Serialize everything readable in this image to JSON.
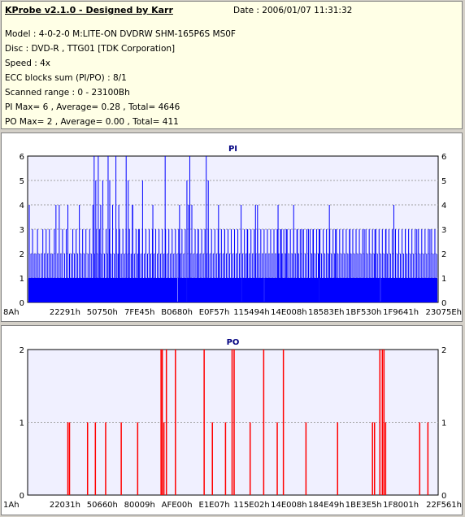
{
  "info": {
    "title": "KProbe v2.1.0 - Designed by Karr",
    "date": "Date : 2006/01/07 11:31:32",
    "lines": [
      "Model : 4-0-2-0 M:LITE-ON DVDRW SHM-165P6S MS0F",
      "Disc : DVD-R , TTG01 [TDK Corporation]",
      "Speed : 4x",
      "ECC blocks sum (PI/PO) : 8/1",
      "Scanned range : 0 - 23100Bh",
      "PI Max= 6 , Average= 0.28 , Total= 4646",
      "PO Max= 2 , Average= 0.00 , Total= 411"
    ]
  },
  "colors": {
    "pi_series": "#0000ff",
    "po_series": "#ff0000",
    "plot_bg": "#f0f0ff",
    "grid": "#a0a0a0",
    "pi_title": "#000080",
    "po_title": "#000080"
  },
  "chart_data": [
    {
      "type": "bar",
      "title": "PI",
      "ylim": [
        0,
        6
      ],
      "yticks": [
        "0",
        "1",
        "2",
        "3",
        "4",
        "5",
        "6"
      ],
      "xticks": [
        "8Ah",
        "22291h",
        "50750h",
        "7FE45h",
        "B0680h",
        "E0F57h",
        "115494h",
        "14E008h",
        "18583Eh",
        "1BF530h",
        "1F9641h",
        "23075Eh"
      ],
      "x_range": [
        0,
        1
      ],
      "grid": true,
      "baseline": 1,
      "baseline_gaps": [
        0.365,
        0.388,
        0.52,
        0.576,
        0.71,
        0.86
      ],
      "spikes": [
        [
          0.004,
          4
        ],
        [
          0.008,
          2
        ],
        [
          0.012,
          3
        ],
        [
          0.016,
          2
        ],
        [
          0.02,
          2
        ],
        [
          0.024,
          3
        ],
        [
          0.028,
          2
        ],
        [
          0.033,
          2
        ],
        [
          0.037,
          3
        ],
        [
          0.041,
          2
        ],
        [
          0.045,
          3
        ],
        [
          0.049,
          2
        ],
        [
          0.053,
          3
        ],
        [
          0.057,
          2
        ],
        [
          0.061,
          2
        ],
        [
          0.065,
          3
        ],
        [
          0.069,
          4
        ],
        [
          0.073,
          2
        ],
        [
          0.077,
          4
        ],
        [
          0.081,
          2
        ],
        [
          0.085,
          3
        ],
        [
          0.09,
          2
        ],
        [
          0.094,
          3
        ],
        [
          0.098,
          4
        ],
        [
          0.102,
          2
        ],
        [
          0.106,
          2
        ],
        [
          0.11,
          3
        ],
        [
          0.114,
          2
        ],
        [
          0.118,
          3
        ],
        [
          0.122,
          2
        ],
        [
          0.126,
          4
        ],
        [
          0.13,
          2
        ],
        [
          0.134,
          3
        ],
        [
          0.138,
          2
        ],
        [
          0.142,
          3
        ],
        [
          0.147,
          2
        ],
        [
          0.151,
          3
        ],
        [
          0.155,
          2
        ],
        [
          0.159,
          4
        ],
        [
          0.163,
          2
        ],
        [
          0.167,
          3
        ],
        [
          0.171,
          2
        ],
        [
          0.175,
          3
        ],
        [
          0.179,
          2
        ],
        [
          0.183,
          5
        ],
        [
          0.187,
          2
        ],
        [
          0.191,
          3
        ],
        [
          0.195,
          2
        ],
        [
          0.199,
          3
        ],
        [
          0.203,
          2
        ],
        [
          0.207,
          4
        ],
        [
          0.211,
          2
        ],
        [
          0.216,
          3
        ],
        [
          0.22,
          2
        ],
        [
          0.224,
          3
        ],
        [
          0.228,
          2
        ],
        [
          0.232,
          3
        ],
        [
          0.236,
          2
        ],
        [
          0.24,
          3
        ],
        [
          0.244,
          2
        ],
        [
          0.248,
          3
        ],
        [
          0.252,
          2
        ],
        [
          0.256,
          4
        ],
        [
          0.26,
          2
        ],
        [
          0.264,
          3
        ],
        [
          0.268,
          2
        ],
        [
          0.272,
          3
        ],
        [
          0.276,
          2
        ],
        [
          0.28,
          3
        ],
        [
          0.284,
          2
        ],
        [
          0.288,
          3
        ],
        [
          0.292,
          2
        ],
        [
          0.296,
          3
        ],
        [
          0.3,
          2
        ],
        [
          0.304,
          3
        ],
        [
          0.308,
          2
        ],
        [
          0.312,
          3
        ],
        [
          0.316,
          2
        ],
        [
          0.32,
          3
        ],
        [
          0.324,
          2
        ],
        [
          0.328,
          3
        ],
        [
          0.332,
          2
        ],
        [
          0.336,
          3
        ],
        [
          0.34,
          2
        ],
        [
          0.344,
          3
        ],
        [
          0.348,
          2
        ],
        [
          0.352,
          3
        ],
        [
          0.356,
          2
        ],
        [
          0.36,
          3
        ],
        [
          0.364,
          2
        ],
        [
          0.368,
          3
        ],
        [
          0.372,
          2
        ],
        [
          0.376,
          3
        ],
        [
          0.38,
          2
        ],
        [
          0.384,
          3
        ],
        [
          0.388,
          2
        ],
        [
          0.392,
          4
        ],
        [
          0.396,
          2
        ],
        [
          0.4,
          3
        ],
        [
          0.404,
          2
        ],
        [
          0.408,
          3
        ],
        [
          0.412,
          2
        ],
        [
          0.416,
          3
        ],
        [
          0.42,
          2
        ],
        [
          0.424,
          3
        ],
        [
          0.428,
          2
        ],
        [
          0.432,
          3
        ],
        [
          0.436,
          2
        ],
        [
          0.44,
          3
        ],
        [
          0.444,
          2
        ],
        [
          0.448,
          3
        ],
        [
          0.452,
          2
        ],
        [
          0.456,
          3
        ],
        [
          0.46,
          2
        ],
        [
          0.464,
          3
        ],
        [
          0.468,
          2
        ],
        [
          0.472,
          3
        ],
        [
          0.476,
          2
        ],
        [
          0.48,
          3
        ],
        [
          0.484,
          2
        ],
        [
          0.488,
          3
        ],
        [
          0.492,
          2
        ],
        [
          0.496,
          3
        ],
        [
          0.5,
          2
        ],
        [
          0.504,
          3
        ],
        [
          0.508,
          2
        ],
        [
          0.512,
          3
        ],
        [
          0.516,
          2
        ],
        [
          0.52,
          3
        ],
        [
          0.524,
          2
        ],
        [
          0.528,
          3
        ],
        [
          0.532,
          2
        ],
        [
          0.536,
          3
        ],
        [
          0.54,
          2
        ],
        [
          0.544,
          3
        ],
        [
          0.548,
          2
        ],
        [
          0.552,
          3
        ],
        [
          0.556,
          2
        ],
        [
          0.56,
          3
        ],
        [
          0.564,
          2
        ],
        [
          0.568,
          3
        ],
        [
          0.572,
          2
        ],
        [
          0.576,
          3
        ],
        [
          0.58,
          2
        ],
        [
          0.584,
          3
        ],
        [
          0.588,
          2
        ],
        [
          0.592,
          3
        ],
        [
          0.596,
          2
        ],
        [
          0.6,
          3
        ],
        [
          0.604,
          2
        ],
        [
          0.608,
          3
        ],
        [
          0.612,
          2
        ],
        [
          0.616,
          3
        ],
        [
          0.62,
          2
        ],
        [
          0.624,
          3
        ],
        [
          0.628,
          2
        ],
        [
          0.632,
          3
        ],
        [
          0.636,
          2
        ],
        [
          0.64,
          3
        ],
        [
          0.644,
          2
        ],
        [
          0.648,
          3
        ],
        [
          0.652,
          2
        ],
        [
          0.656,
          3
        ],
        [
          0.66,
          2
        ],
        [
          0.664,
          3
        ],
        [
          0.668,
          2
        ],
        [
          0.672,
          3
        ],
        [
          0.676,
          2
        ],
        [
          0.68,
          3
        ],
        [
          0.684,
          2
        ],
        [
          0.688,
          3
        ],
        [
          0.692,
          2
        ],
        [
          0.696,
          3
        ],
        [
          0.7,
          2
        ],
        [
          0.704,
          3
        ],
        [
          0.708,
          2
        ],
        [
          0.712,
          3
        ],
        [
          0.716,
          2
        ],
        [
          0.72,
          3
        ],
        [
          0.724,
          2
        ],
        [
          0.728,
          3
        ],
        [
          0.732,
          2
        ],
        [
          0.736,
          3
        ],
        [
          0.74,
          2
        ],
        [
          0.744,
          3
        ],
        [
          0.748,
          2
        ],
        [
          0.752,
          3
        ],
        [
          0.756,
          2
        ],
        [
          0.76,
          3
        ],
        [
          0.764,
          2
        ],
        [
          0.768,
          3
        ],
        [
          0.772,
          2
        ],
        [
          0.776,
          3
        ],
        [
          0.78,
          2
        ],
        [
          0.784,
          3
        ],
        [
          0.788,
          2
        ],
        [
          0.792,
          3
        ],
        [
          0.796,
          2
        ],
        [
          0.8,
          3
        ],
        [
          0.804,
          2
        ],
        [
          0.808,
          3
        ],
        [
          0.812,
          2
        ],
        [
          0.816,
          3
        ],
        [
          0.82,
          2
        ],
        [
          0.824,
          3
        ],
        [
          0.828,
          2
        ],
        [
          0.832,
          3
        ],
        [
          0.836,
          2
        ],
        [
          0.84,
          3
        ],
        [
          0.844,
          2
        ],
        [
          0.848,
          3
        ],
        [
          0.852,
          2
        ],
        [
          0.856,
          3
        ],
        [
          0.86,
          2
        ],
        [
          0.864,
          3
        ],
        [
          0.868,
          2
        ],
        [
          0.872,
          3
        ],
        [
          0.876,
          2
        ],
        [
          0.88,
          3
        ],
        [
          0.884,
          2
        ],
        [
          0.888,
          3
        ],
        [
          0.892,
          2
        ],
        [
          0.896,
          3
        ],
        [
          0.9,
          2
        ],
        [
          0.904,
          3
        ],
        [
          0.908,
          2
        ],
        [
          0.912,
          3
        ],
        [
          0.916,
          2
        ],
        [
          0.92,
          3
        ],
        [
          0.924,
          2
        ],
        [
          0.928,
          3
        ],
        [
          0.932,
          2
        ],
        [
          0.936,
          3
        ],
        [
          0.94,
          2
        ],
        [
          0.944,
          3
        ],
        [
          0.948,
          2
        ],
        [
          0.952,
          3
        ],
        [
          0.956,
          2
        ],
        [
          0.96,
          3
        ],
        [
          0.964,
          2
        ],
        [
          0.968,
          3
        ],
        [
          0.972,
          2
        ],
        [
          0.976,
          3
        ],
        [
          0.98,
          2
        ],
        [
          0.984,
          3
        ],
        [
          0.988,
          2
        ],
        [
          0.992,
          3
        ],
        [
          0.996,
          2
        ],
        [
          0.162,
          6
        ],
        [
          0.166,
          5
        ],
        [
          0.172,
          6
        ],
        [
          0.178,
          4
        ],
        [
          0.196,
          6
        ],
        [
          0.2,
          5
        ],
        [
          0.215,
          6
        ],
        [
          0.222,
          4
        ],
        [
          0.24,
          6
        ],
        [
          0.245,
          5
        ],
        [
          0.255,
          4
        ],
        [
          0.27,
          3
        ],
        [
          0.28,
          5
        ],
        [
          0.305,
          4
        ],
        [
          0.335,
          6
        ],
        [
          0.37,
          4
        ],
        [
          0.388,
          5
        ],
        [
          0.395,
          6
        ],
        [
          0.4,
          4
        ],
        [
          0.415,
          3
        ],
        [
          0.435,
          6
        ],
        [
          0.44,
          5
        ],
        [
          0.465,
          4
        ],
        [
          0.48,
          3
        ],
        [
          0.52,
          4
        ],
        [
          0.535,
          3
        ],
        [
          0.555,
          4
        ],
        [
          0.56,
          4
        ],
        [
          0.6,
          3
        ],
        [
          0.61,
          4
        ],
        [
          0.618,
          3
        ],
        [
          0.63,
          3
        ],
        [
          0.648,
          4
        ],
        [
          0.657,
          3
        ],
        [
          0.668,
          3
        ],
        [
          0.684,
          3
        ],
        [
          0.695,
          3
        ],
        [
          0.71,
          3
        ],
        [
          0.735,
          4
        ],
        [
          0.75,
          3
        ],
        [
          0.785,
          3
        ],
        [
          0.82,
          3
        ],
        [
          0.846,
          3
        ],
        [
          0.873,
          3
        ],
        [
          0.892,
          4
        ],
        [
          0.92,
          3
        ],
        [
          0.948,
          3
        ],
        [
          0.98,
          3
        ]
      ]
    },
    {
      "type": "bar",
      "title": "PO",
      "ylim": [
        0,
        2
      ],
      "yticks": [
        "0",
        "1",
        "2"
      ],
      "xticks": [
        "1Ah",
        "22031h",
        "50660h",
        "80009h",
        "AFE00h",
        "E1E07h",
        "115E02h",
        "14E008h",
        "184E49h",
        "1BE3E5h",
        "1F8001h",
        "22F561h"
      ],
      "x_range": [
        0,
        1
      ],
      "grid": true,
      "spikes": [
        [
          0.098,
          1
        ],
        [
          0.102,
          1
        ],
        [
          0.146,
          1
        ],
        [
          0.165,
          1
        ],
        [
          0.19,
          1
        ],
        [
          0.228,
          1
        ],
        [
          0.268,
          1
        ],
        [
          0.325,
          2
        ],
        [
          0.328,
          2
        ],
        [
          0.332,
          1
        ],
        [
          0.338,
          2
        ],
        [
          0.36,
          2
        ],
        [
          0.43,
          2
        ],
        [
          0.45,
          1
        ],
        [
          0.482,
          1
        ],
        [
          0.498,
          2
        ],
        [
          0.503,
          2
        ],
        [
          0.542,
          1
        ],
        [
          0.575,
          2
        ],
        [
          0.608,
          1
        ],
        [
          0.623,
          2
        ],
        [
          0.678,
          1
        ],
        [
          0.755,
          1
        ],
        [
          0.84,
          1
        ],
        [
          0.845,
          1
        ],
        [
          0.858,
          2
        ],
        [
          0.864,
          2
        ],
        [
          0.868,
          2
        ],
        [
          0.872,
          1
        ],
        [
          0.955,
          1
        ],
        [
          0.975,
          1
        ]
      ]
    }
  ]
}
